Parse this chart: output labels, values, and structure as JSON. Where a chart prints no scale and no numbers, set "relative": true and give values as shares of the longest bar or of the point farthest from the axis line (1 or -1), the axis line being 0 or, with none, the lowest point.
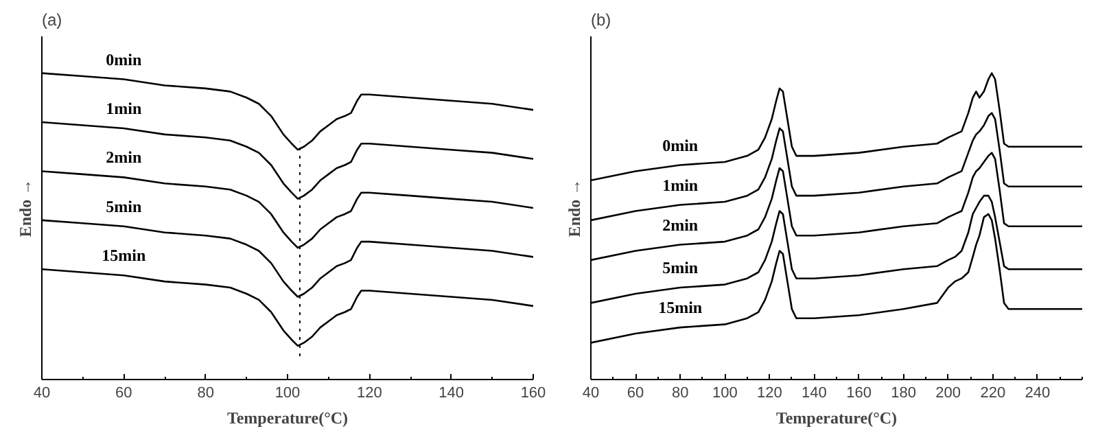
{
  "chart_data": [
    {
      "type": "line",
      "title": "(a)",
      "xlabel": "Temperature(°C)",
      "ylabel": "Endo →",
      "relative": true,
      "xlim": [
        40,
        160
      ],
      "xticks": [
        40,
        60,
        80,
        100,
        120,
        140,
        160
      ],
      "grid": false,
      "line_style": "solid",
      "x": [
        40,
        50,
        60,
        70,
        80,
        86,
        90,
        93,
        96,
        99,
        101,
        102.5,
        104,
        106,
        108,
        110,
        112,
        114,
        115.5,
        117,
        118,
        120,
        130,
        140,
        150,
        160
      ],
      "series": [
        {
          "name": "0min",
          "color": "#000000",
          "values": [
            1.0,
            0.99,
            0.98,
            0.96,
            0.95,
            0.94,
            0.92,
            0.9,
            0.86,
            0.8,
            0.77,
            0.75,
            0.76,
            0.78,
            0.81,
            0.83,
            0.85,
            0.86,
            0.87,
            0.91,
            0.93,
            0.93,
            0.92,
            0.91,
            0.9,
            0.88
          ]
        },
        {
          "name": "1min",
          "color": "#000000",
          "values": [
            0.84,
            0.83,
            0.82,
            0.8,
            0.79,
            0.78,
            0.76,
            0.74,
            0.7,
            0.64,
            0.61,
            0.59,
            0.6,
            0.62,
            0.65,
            0.67,
            0.69,
            0.7,
            0.71,
            0.75,
            0.77,
            0.77,
            0.76,
            0.75,
            0.74,
            0.72
          ]
        },
        {
          "name": "2min",
          "color": "#000000",
          "values": [
            0.68,
            0.67,
            0.66,
            0.64,
            0.63,
            0.62,
            0.6,
            0.58,
            0.54,
            0.48,
            0.45,
            0.43,
            0.44,
            0.46,
            0.49,
            0.51,
            0.53,
            0.54,
            0.55,
            0.59,
            0.61,
            0.61,
            0.6,
            0.59,
            0.58,
            0.56
          ]
        },
        {
          "name": "5min",
          "color": "#000000",
          "values": [
            0.52,
            0.51,
            0.5,
            0.48,
            0.47,
            0.46,
            0.44,
            0.42,
            0.38,
            0.32,
            0.29,
            0.27,
            0.28,
            0.3,
            0.33,
            0.35,
            0.37,
            0.38,
            0.39,
            0.43,
            0.45,
            0.45,
            0.44,
            0.43,
            0.42,
            0.4
          ]
        },
        {
          "name": "15min",
          "color": "#000000",
          "values": [
            0.36,
            0.35,
            0.34,
            0.32,
            0.31,
            0.3,
            0.28,
            0.26,
            0.22,
            0.16,
            0.13,
            0.11,
            0.12,
            0.14,
            0.17,
            0.19,
            0.21,
            0.22,
            0.23,
            0.27,
            0.29,
            0.29,
            0.28,
            0.27,
            0.26,
            0.24
          ]
        }
      ],
      "ref_lines": [
        {
          "axis": "x",
          "value": 103,
          "color": "#000000",
          "line_style": "dotted"
        }
      ]
    },
    {
      "type": "line",
      "title": "(b)",
      "xlabel": "Temperature(°C)",
      "ylabel": "Endo →",
      "relative": true,
      "xlim": [
        40,
        260
      ],
      "xticks": [
        40,
        60,
        80,
        100,
        120,
        140,
        160,
        180,
        200,
        220,
        240
      ],
      "grid": false,
      "line_style": "solid",
      "x": [
        40,
        60,
        80,
        100,
        110,
        115,
        118,
        121,
        123,
        124.5,
        126,
        128,
        130,
        132,
        140,
        160,
        180,
        195,
        200,
        203,
        206,
        209,
        211,
        212.5,
        214,
        216,
        218,
        219.5,
        221,
        223,
        225,
        227,
        240,
        260
      ],
      "series": [
        {
          "name": "0min",
          "color": "#000000",
          "values": [
            0.65,
            0.68,
            0.7,
            0.71,
            0.73,
            0.75,
            0.79,
            0.85,
            0.91,
            0.95,
            0.94,
            0.85,
            0.76,
            0.73,
            0.73,
            0.74,
            0.76,
            0.77,
            0.79,
            0.8,
            0.81,
            0.87,
            0.92,
            0.94,
            0.92,
            0.94,
            0.98,
            1.0,
            0.98,
            0.88,
            0.77,
            0.76,
            0.76,
            0.76
          ]
        },
        {
          "name": "1min",
          "color": "#000000",
          "values": [
            0.52,
            0.55,
            0.57,
            0.58,
            0.6,
            0.62,
            0.66,
            0.72,
            0.78,
            0.82,
            0.81,
            0.72,
            0.63,
            0.6,
            0.6,
            0.61,
            0.63,
            0.64,
            0.66,
            0.67,
            0.68,
            0.74,
            0.78,
            0.8,
            0.81,
            0.83,
            0.86,
            0.87,
            0.85,
            0.75,
            0.64,
            0.63,
            0.63,
            0.63
          ]
        },
        {
          "name": "2min",
          "color": "#000000",
          "values": [
            0.39,
            0.42,
            0.44,
            0.45,
            0.47,
            0.49,
            0.53,
            0.59,
            0.65,
            0.69,
            0.68,
            0.59,
            0.5,
            0.47,
            0.47,
            0.48,
            0.5,
            0.51,
            0.53,
            0.54,
            0.55,
            0.61,
            0.66,
            0.68,
            0.69,
            0.71,
            0.73,
            0.74,
            0.72,
            0.62,
            0.51,
            0.5,
            0.5,
            0.5
          ]
        },
        {
          "name": "5min",
          "color": "#000000",
          "values": [
            0.25,
            0.28,
            0.3,
            0.31,
            0.33,
            0.35,
            0.39,
            0.45,
            0.51,
            0.55,
            0.54,
            0.45,
            0.36,
            0.33,
            0.33,
            0.34,
            0.36,
            0.37,
            0.39,
            0.4,
            0.42,
            0.48,
            0.54,
            0.56,
            0.58,
            0.6,
            0.6,
            0.58,
            0.53,
            0.45,
            0.37,
            0.36,
            0.36,
            0.36
          ]
        },
        {
          "name": "15min",
          "color": "#000000",
          "values": [
            0.12,
            0.15,
            0.17,
            0.18,
            0.2,
            0.22,
            0.26,
            0.32,
            0.38,
            0.42,
            0.41,
            0.32,
            0.23,
            0.2,
            0.2,
            0.21,
            0.23,
            0.25,
            0.3,
            0.32,
            0.33,
            0.35,
            0.4,
            0.44,
            0.47,
            0.53,
            0.54,
            0.52,
            0.46,
            0.36,
            0.25,
            0.23,
            0.23,
            0.23
          ]
        }
      ]
    }
  ]
}
